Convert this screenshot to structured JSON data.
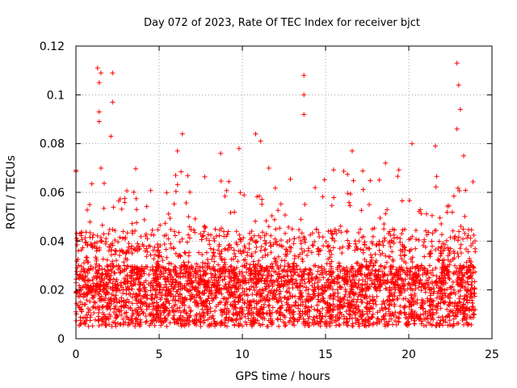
{
  "chart_data": {
    "type": "scatter",
    "title": "Day 072 of 2023, Rate Of TEC Index for receiver bjct",
    "xlabel": "GPS time / hours",
    "ylabel": "ROTI / TECUs",
    "xlim": [
      0,
      25
    ],
    "ylim": [
      0,
      0.12
    ],
    "xticks": [
      "0",
      "5",
      "10",
      "15",
      "20",
      "25"
    ],
    "yticks": [
      "0",
      "0.02",
      "0.04",
      "0.06",
      "0.08",
      "0.1",
      "0.12"
    ],
    "grid": true,
    "marker": "plus",
    "color": "#ff0000",
    "data_extent_hours": [
      0,
      24
    ],
    "baseline_range": [
      0.005,
      0.03
    ],
    "notable_points": [
      {
        "x": 1.3,
        "y": 0.111
      },
      {
        "x": 1.4,
        "y": 0.105
      },
      {
        "x": 1.5,
        "y": 0.109
      },
      {
        "x": 1.4,
        "y": 0.093
      },
      {
        "x": 1.4,
        "y": 0.089
      },
      {
        "x": 2.2,
        "y": 0.109
      },
      {
        "x": 2.2,
        "y": 0.097
      },
      {
        "x": 2.1,
        "y": 0.083
      },
      {
        "x": 6.4,
        "y": 0.084
      },
      {
        "x": 6.1,
        "y": 0.077
      },
      {
        "x": 8.7,
        "y": 0.076
      },
      {
        "x": 9.8,
        "y": 0.078
      },
      {
        "x": 10.8,
        "y": 0.084
      },
      {
        "x": 11.1,
        "y": 0.081
      },
      {
        "x": 13.7,
        "y": 0.108
      },
      {
        "x": 13.7,
        "y": 0.1
      },
      {
        "x": 13.7,
        "y": 0.092
      },
      {
        "x": 16.6,
        "y": 0.077
      },
      {
        "x": 18.6,
        "y": 0.072
      },
      {
        "x": 20.2,
        "y": 0.08
      },
      {
        "x": 21.6,
        "y": 0.079
      },
      {
        "x": 22.9,
        "y": 0.113
      },
      {
        "x": 23.0,
        "y": 0.104
      },
      {
        "x": 23.1,
        "y": 0.094
      },
      {
        "x": 22.9,
        "y": 0.086
      },
      {
        "x": 23.3,
        "y": 0.075
      },
      {
        "x": 0.0,
        "y": 0.069
      }
    ]
  }
}
